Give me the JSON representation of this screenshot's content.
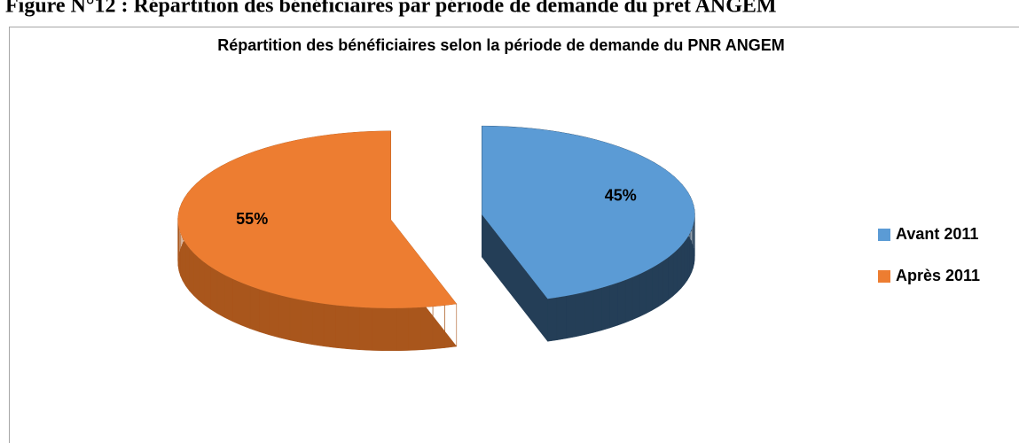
{
  "caption": "Figure N°12 : Répartition des bénéficiaires par période de demande du prêt ANGEM",
  "chart_data": {
    "type": "pie",
    "title": "Répartition des bénéficiaires selon la période de demande du PNR ANGEM",
    "categories": [
      "Avant 2011",
      "Après 2011"
    ],
    "values": [
      45,
      55
    ],
    "value_labels": [
      "45%",
      "55%"
    ],
    "colors": [
      "#5b9bd5",
      "#ed7d31"
    ],
    "side_colors": [
      "#243e57",
      "#a9561c"
    ],
    "legend": "right",
    "three_d": true
  }
}
